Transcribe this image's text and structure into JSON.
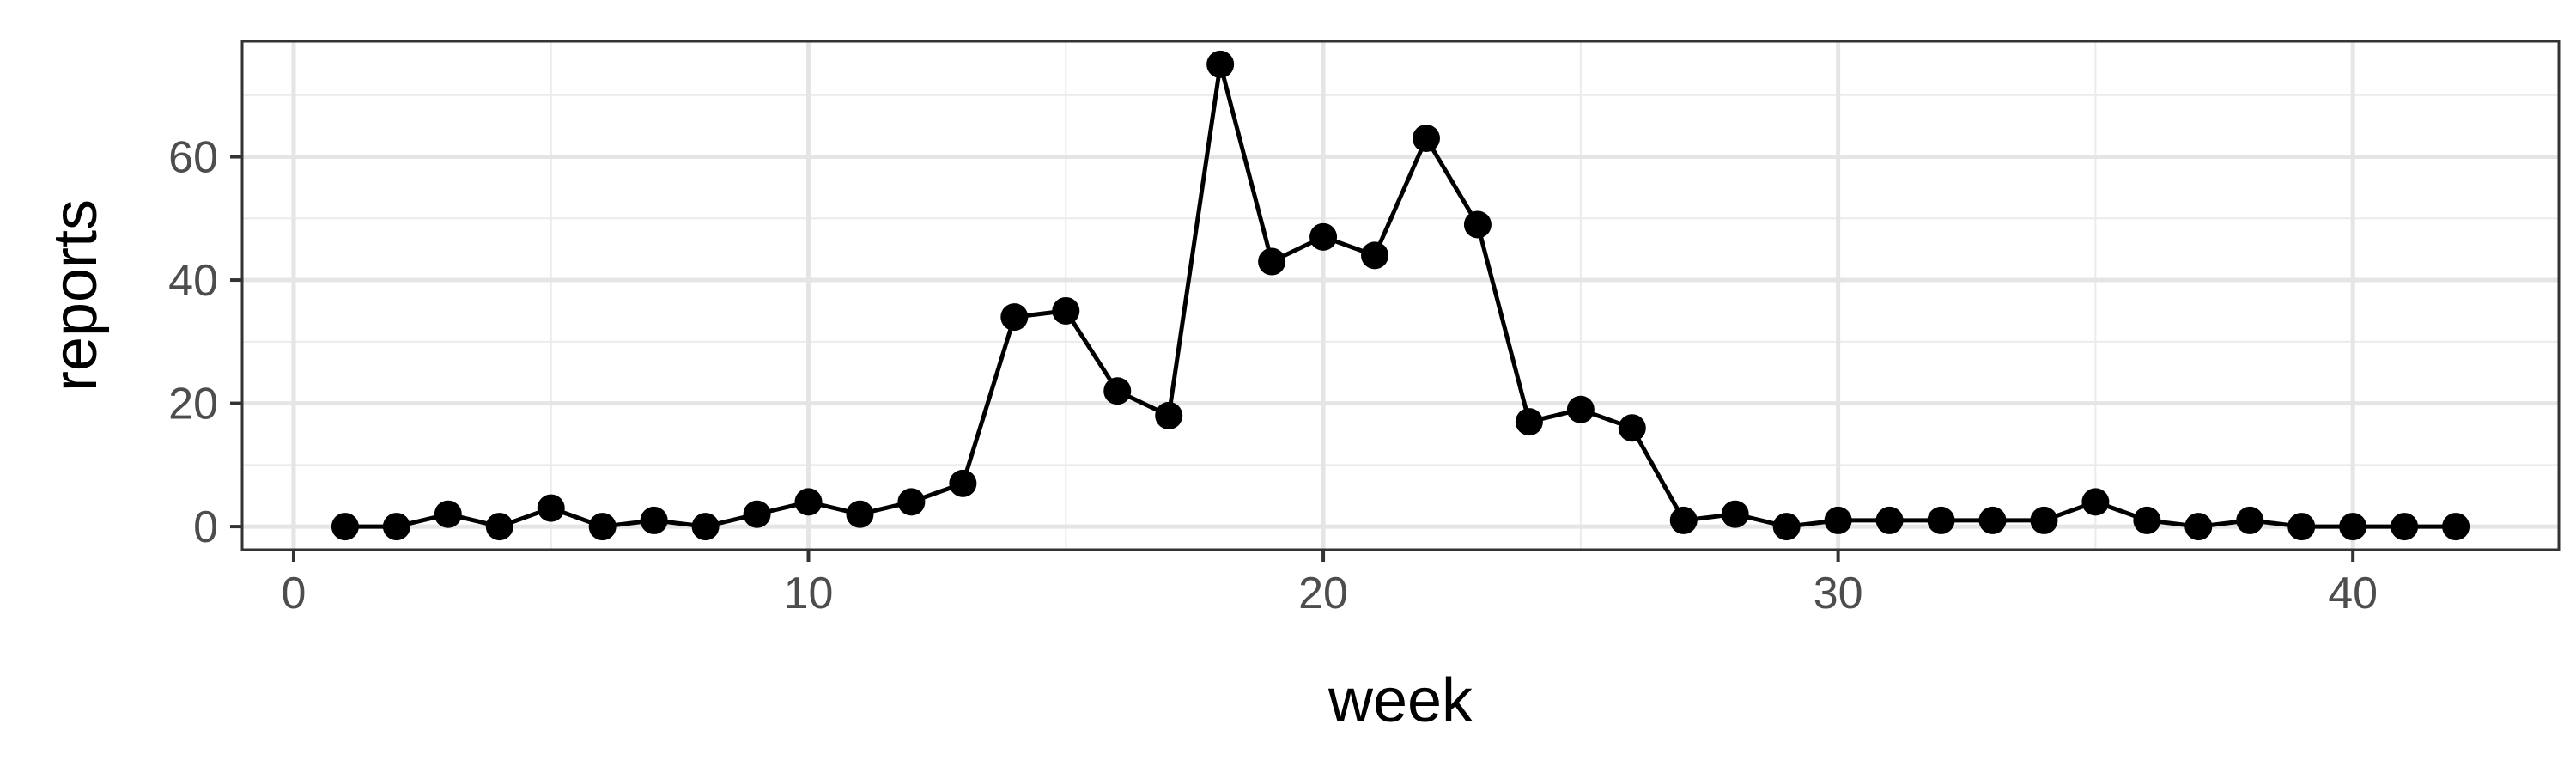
{
  "chart_data": {
    "type": "line",
    "xlabel": "week",
    "ylabel": "reports",
    "xlim": [
      -1,
      44
    ],
    "ylim": [
      -3.75,
      78.75
    ],
    "x_ticks": [
      0,
      10,
      20,
      30,
      40
    ],
    "y_ticks": [
      0,
      20,
      40,
      60
    ],
    "x_minor": [
      5,
      15,
      25,
      35
    ],
    "y_minor": [
      10,
      30,
      50,
      70
    ],
    "grid": true,
    "legend": "none",
    "x": [
      1,
      2,
      3,
      4,
      5,
      6,
      7,
      8,
      9,
      10,
      11,
      12,
      13,
      14,
      15,
      16,
      17,
      18,
      19,
      20,
      21,
      22,
      23,
      24,
      25,
      26,
      27,
      28,
      29,
      30,
      31,
      32,
      33,
      34,
      35,
      36,
      37,
      38,
      39,
      40,
      41,
      42
    ],
    "series": [
      {
        "values": [
          0,
          0,
          2,
          0,
          3,
          0,
          1,
          0,
          2,
          4,
          2,
          4,
          7,
          34,
          35,
          22,
          18,
          75,
          43,
          47,
          44,
          63,
          49,
          17,
          19,
          16,
          1,
          2,
          0,
          1,
          1,
          1,
          1,
          1,
          4,
          1,
          0,
          1,
          0,
          0,
          0,
          0
        ],
        "color": "#000000"
      }
    ]
  }
}
